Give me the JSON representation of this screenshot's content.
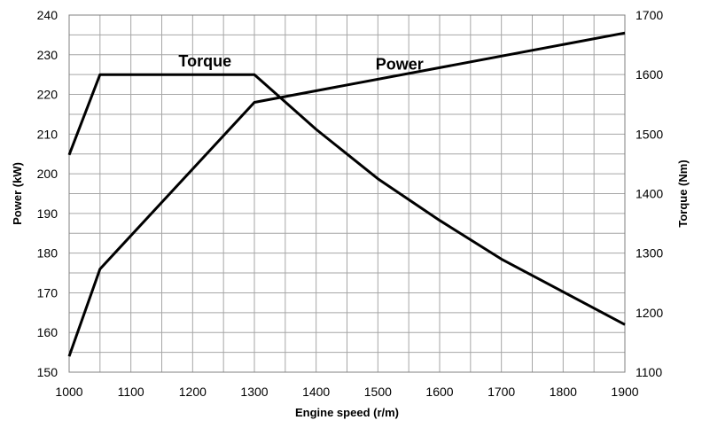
{
  "chart_data": {
    "type": "line",
    "xlabel": "Engine speed (r/m)",
    "ylabel_left": "Power (kW)",
    "ylabel_right": "Torque (Nm)",
    "xlim": [
      1000,
      1900
    ],
    "ylim_left": [
      150,
      240
    ],
    "ylim_right": [
      1100,
      1700
    ],
    "x_ticks": [
      1000,
      1100,
      1200,
      1300,
      1400,
      1500,
      1600,
      1700,
      1800,
      1900
    ],
    "y_left_ticks": [
      150,
      160,
      170,
      180,
      190,
      200,
      210,
      220,
      230,
      240
    ],
    "y_right_ticks": [
      1100,
      1200,
      1300,
      1400,
      1500,
      1600,
      1700
    ],
    "grid": true,
    "series": [
      {
        "name": "Power",
        "axis": "left",
        "x": [
          1000,
          1050,
          1300,
          1900
        ],
        "y": [
          154,
          176,
          218,
          235.5
        ]
      },
      {
        "name": "Torque",
        "axis": "right",
        "x": [
          1000,
          1050,
          1300,
          1400,
          1500,
          1600,
          1700,
          1800,
          1900
        ],
        "y": [
          1465,
          1600,
          1600,
          1508,
          1425,
          1355,
          1290,
          1235,
          1180
        ]
      }
    ]
  }
}
